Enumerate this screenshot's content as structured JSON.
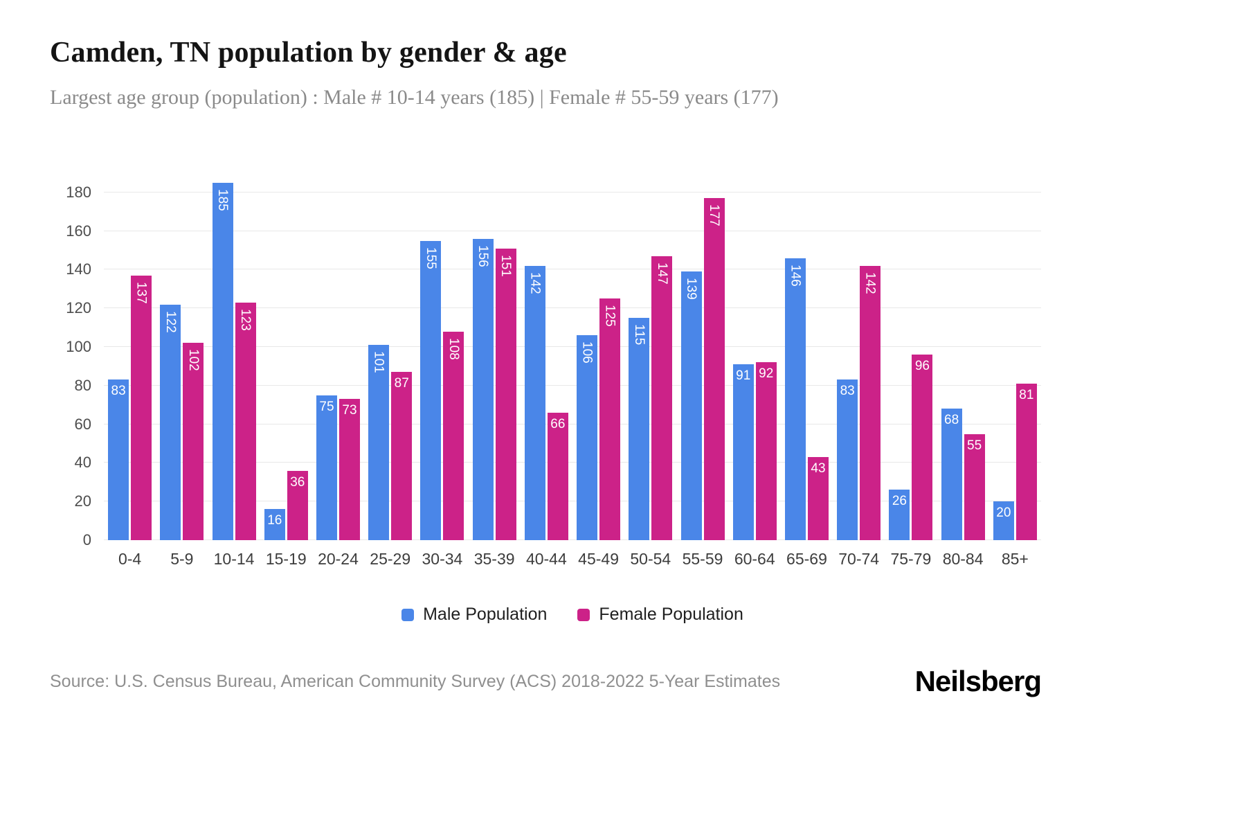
{
  "title": "Camden, TN population by gender & age",
  "subtitle": "Largest age group (population) : Male # 10-14 years (185) | Female # 55-59 years (177)",
  "source": "Source: U.S. Census Bureau, American Community Survey (ACS) 2018-2022 5-Year Estimates",
  "brand": "Neilsberg",
  "colors": {
    "male": "#4a86e8",
    "female": "#cc2288",
    "grid": "#e8e8e8"
  },
  "chart_data": {
    "type": "bar",
    "title": "Camden, TN population by gender & age",
    "categories": [
      "0-4",
      "5-9",
      "10-14",
      "15-19",
      "20-24",
      "25-29",
      "30-34",
      "35-39",
      "40-44",
      "45-49",
      "50-54",
      "55-59",
      "60-64",
      "65-69",
      "70-74",
      "75-79",
      "80-84",
      "85+"
    ],
    "series": [
      {
        "name": "Male Population",
        "color": "#4a86e8",
        "values": [
          83,
          122,
          185,
          16,
          75,
          101,
          155,
          156,
          142,
          106,
          115,
          139,
          91,
          146,
          83,
          26,
          68,
          20
        ]
      },
      {
        "name": "Female Population",
        "color": "#cc2288",
        "values": [
          137,
          102,
          123,
          36,
          73,
          87,
          108,
          151,
          66,
          125,
          147,
          177,
          92,
          43,
          142,
          96,
          55,
          81
        ]
      }
    ],
    "xlabel": "",
    "ylabel": "",
    "ylim": [
      0,
      190
    ],
    "yticks": [
      0,
      20,
      40,
      60,
      80,
      100,
      120,
      140,
      160,
      180
    ],
    "grid": true,
    "legend_position": "bottom",
    "value_labels": "inside-top, white, rotated vertical when 3 digits"
  }
}
